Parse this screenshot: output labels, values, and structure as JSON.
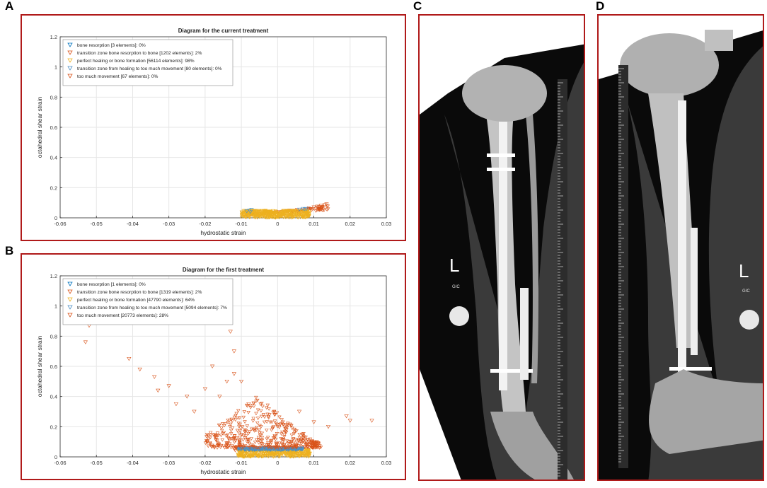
{
  "panel_labels": {
    "a": "A",
    "b": "B",
    "c": "C",
    "d": "D"
  },
  "colors": {
    "frame": "#b01a1a",
    "bone_resorption": "#0072bd",
    "transition_resorption": "#d95319",
    "perfect_healing": "#edb120",
    "transition_movement": "#4d8fc4",
    "too_much_movement": "#d95319"
  },
  "chart_data": [
    {
      "type": "scatter",
      "title": "Diagram for the current treatment",
      "xlabel": "hydrostatic strain",
      "ylabel": "octahedral shear strain",
      "xlim": [
        -0.06,
        0.03
      ],
      "ylim": [
        0,
        1.2
      ],
      "xticks": [
        "-0.06",
        "-0.05",
        "-0.04",
        "-0.03",
        "-0.02",
        "-0.01",
        "0",
        "0.01",
        "0.02",
        "0.03"
      ],
      "yticks": [
        "0",
        "0.2",
        "0.4",
        "0.6",
        "0.8",
        "1",
        "1.2"
      ],
      "grid": true,
      "legend_position": "top-left",
      "marker": "triangle-down",
      "series": [
        {
          "name": "bone resorption [3 elements]: 0%",
          "color": "#0072bd",
          "x": [
            -0.0078,
            -0.0072,
            -0.0065
          ],
          "y": [
            0.048,
            0.052,
            0.046
          ]
        },
        {
          "name": "transition zone bone resorption to bone [1202 elements]: 2%",
          "color": "#d95319",
          "cloud": {
            "x_range": [
              -0.009,
              0.014
            ],
            "y_base": 0.02,
            "y_spread": 0.06,
            "count": 1202
          }
        },
        {
          "name": "perfect healing or bone formation [56114 elements]: 98%",
          "color": "#edb120",
          "cloud": {
            "x_range": [
              -0.01,
              0.009
            ],
            "y_base": 0.0,
            "y_spread": 0.05,
            "count": 56114
          }
        },
        {
          "name": "transition zone from healing to too much movement [80 elements]: 0%",
          "color": "#4d8fc4",
          "x": [
            -0.0085,
            -0.0075,
            0.006,
            0.007,
            0.0075,
            0.008
          ],
          "y": [
            0.045,
            0.04,
            0.055,
            0.06,
            0.058,
            0.06
          ]
        },
        {
          "name": "too much movement [67 elements]: 0%",
          "color": "#d95319",
          "x": [
            0.01,
            0.011,
            0.012,
            0.013,
            0.0135
          ],
          "y": [
            0.07,
            0.075,
            0.08,
            0.085,
            0.09
          ]
        }
      ]
    },
    {
      "type": "scatter",
      "title": "Diagram for the first treatment",
      "xlabel": "hydrostatic strain",
      "ylabel": "octahedral shear strain",
      "xlim": [
        -0.06,
        0.03
      ],
      "ylim": [
        0,
        1.2
      ],
      "xticks": [
        "-0.06",
        "-0.05",
        "-0.04",
        "-0.03",
        "-0.02",
        "-0.01",
        "0",
        "0.01",
        "0.02",
        "0.03"
      ],
      "yticks": [
        "0",
        "0.2",
        "0.4",
        "0.6",
        "0.8",
        "1",
        "1.2"
      ],
      "grid": true,
      "legend_position": "top-left",
      "marker": "triangle-down",
      "series": [
        {
          "name": "bone resorption [1 elements]: 0%",
          "color": "#0072bd",
          "x": [
            -0.009
          ],
          "y": [
            0.05
          ]
        },
        {
          "name": "transition zone bone resorption to bone [1319 elements]: 2%",
          "color": "#d95319",
          "cloud": {
            "x_range": [
              -0.012,
              0.005
            ],
            "y_base": 0.04,
            "y_spread": 0.03,
            "count": 1319
          }
        },
        {
          "name": "perfect healing or bone formation [47790 elements]: 64%",
          "color": "#edb120",
          "cloud": {
            "x_range": [
              -0.011,
              0.009
            ],
            "y_base": 0.0,
            "y_spread": 0.05,
            "count": 47790
          }
        },
        {
          "name": "transition zone from healing to too much movement [5094 elements]: 7%",
          "color": "#4d8fc4",
          "cloud": {
            "x_range": [
              -0.011,
              0.007
            ],
            "y_base": 0.045,
            "y_spread": 0.015,
            "count": 5094
          }
        },
        {
          "name": "too much movement [20773 elements]: 28%",
          "color": "#d95319",
          "x": [
            -0.052,
            -0.053,
            -0.041,
            -0.038,
            -0.034,
            -0.033,
            -0.03,
            -0.028,
            -0.025,
            -0.023,
            -0.02,
            -0.018,
            -0.016,
            -0.014,
            -0.013,
            -0.012,
            -0.012,
            -0.01,
            -0.008,
            0.006,
            0.01,
            0.014,
            0.019,
            0.02,
            0.026
          ],
          "y": [
            0.87,
            0.76,
            0.65,
            0.58,
            0.53,
            0.44,
            0.47,
            0.35,
            0.4,
            0.3,
            0.45,
            0.6,
            0.4,
            0.5,
            0.83,
            0.7,
            0.55,
            0.5,
            0.35,
            0.3,
            0.23,
            0.2,
            0.27,
            0.24,
            0.24
          ],
          "cloud": {
            "x_range": [
              -0.02,
              0.012
            ],
            "y_base": 0.06,
            "y_spread": 0.35,
            "count": 20773
          }
        }
      ]
    }
  ],
  "xray_c": {
    "marker": "L",
    "sub": "GIC"
  },
  "xray_d": {
    "marker": "L",
    "sub": "GIC"
  }
}
